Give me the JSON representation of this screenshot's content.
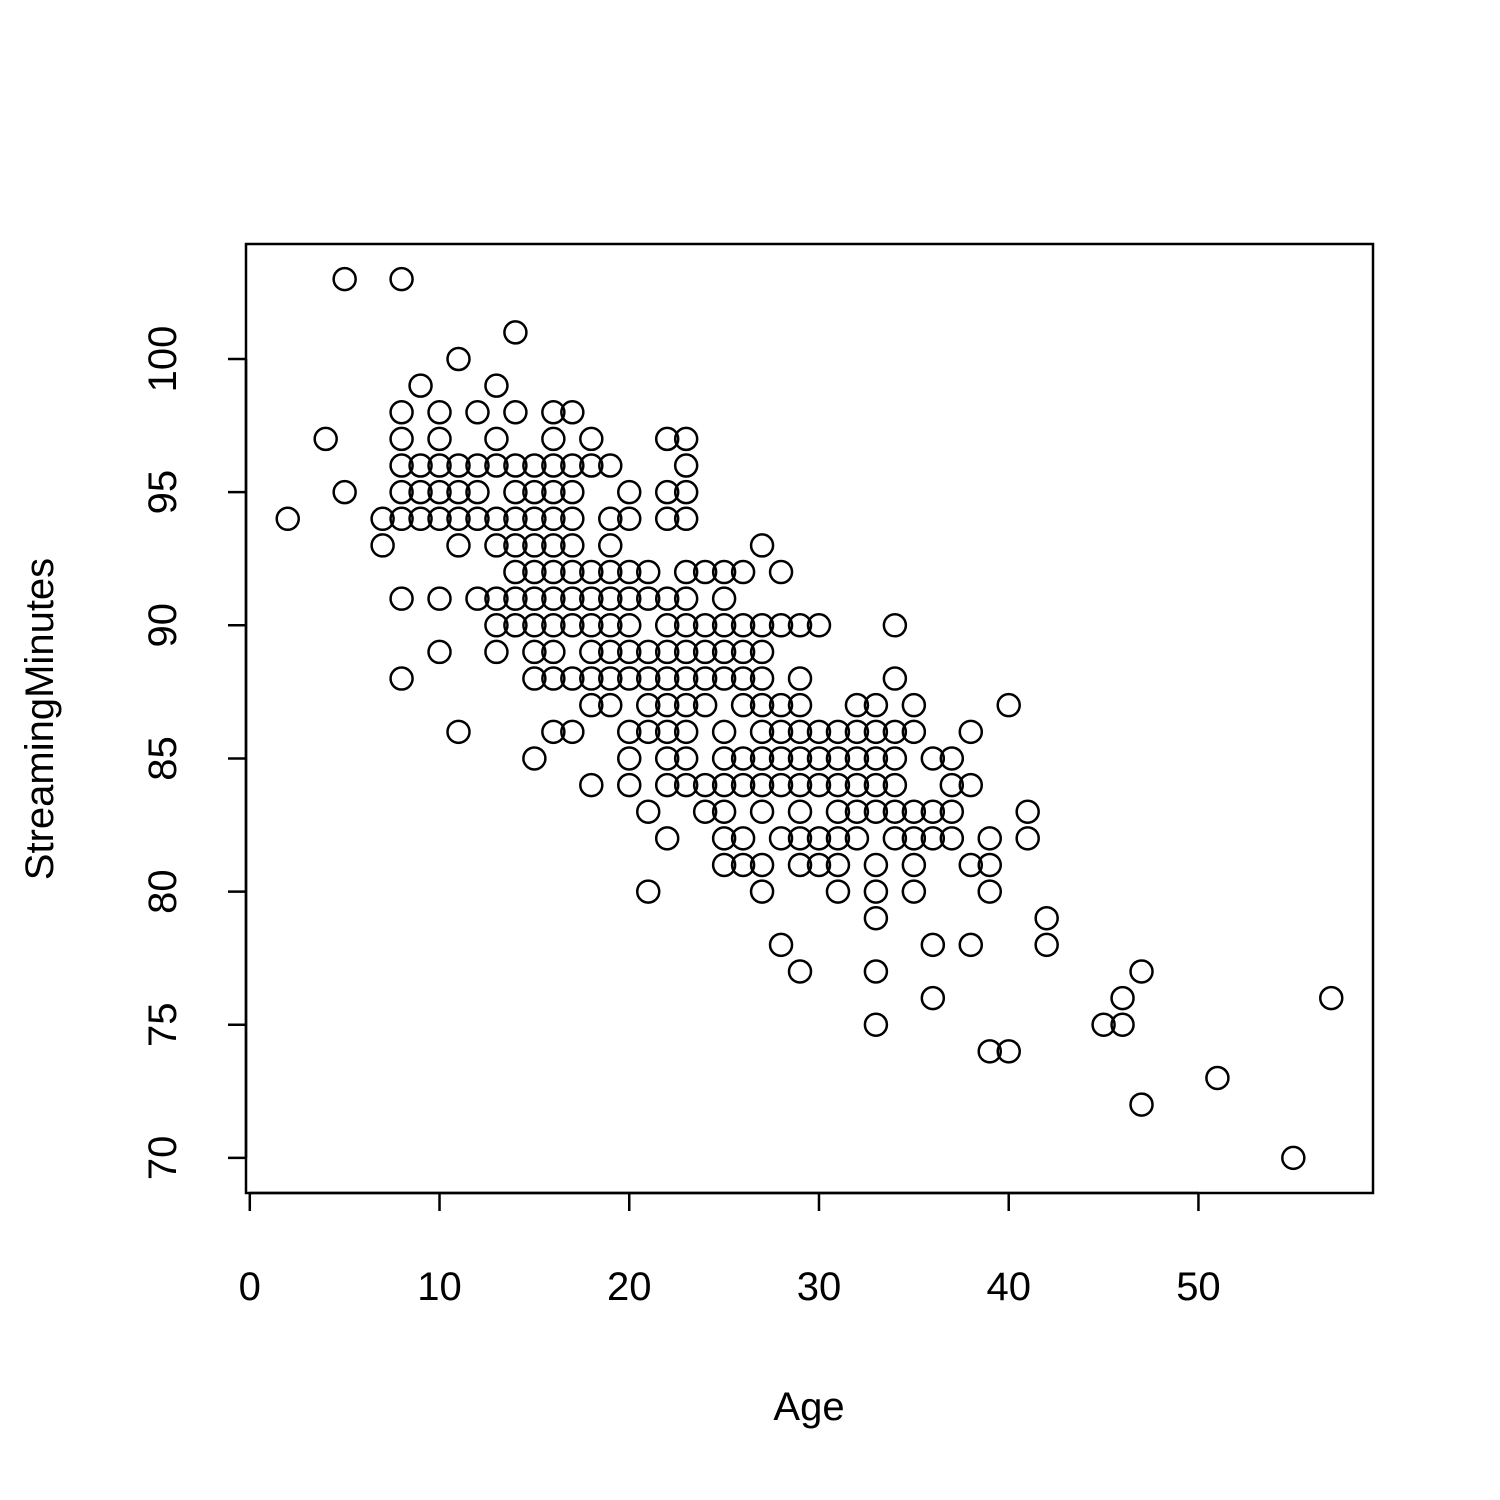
{
  "chart_data": {
    "type": "scatter",
    "x_label": "Age",
    "y_label": "StreamingMinutes",
    "x": [
      2,
      4,
      5,
      5,
      7,
      7,
      8,
      8,
      8,
      8,
      8,
      8,
      8,
      8,
      9,
      9,
      9,
      9,
      10,
      10,
      10,
      10,
      10,
      10,
      10,
      11,
      11,
      11,
      11,
      11,
      11,
      12,
      12,
      12,
      12,
      12,
      13,
      13,
      13,
      13,
      13,
      13,
      13,
      13,
      14,
      14,
      14,
      14,
      14,
      14,
      14,
      14,
      14,
      15,
      15,
      15,
      15,
      15,
      15,
      15,
      15,
      15,
      15,
      16,
      16,
      16,
      16,
      16,
      16,
      16,
      16,
      16,
      16,
      16,
      16,
      17,
      17,
      17,
      17,
      17,
      17,
      17,
      17,
      17,
      17,
      18,
      18,
      18,
      18,
      18,
      18,
      18,
      18,
      18,
      19,
      19,
      19,
      19,
      19,
      19,
      19,
      19,
      19,
      20,
      20,
      20,
      20,
      20,
      20,
      20,
      20,
      20,
      20,
      21,
      21,
      21,
      21,
      21,
      21,
      21,
      21,
      22,
      22,
      22,
      22,
      22,
      22,
      22,
      22,
      22,
      22,
      22,
      22,
      23,
      23,
      23,
      23,
      23,
      23,
      23,
      23,
      23,
      23,
      23,
      23,
      23,
      24,
      24,
      24,
      24,
      24,
      24,
      24,
      25,
      25,
      25,
      25,
      25,
      25,
      25,
      25,
      25,
      25,
      25,
      26,
      26,
      26,
      26,
      26,
      26,
      26,
      26,
      26,
      27,
      27,
      27,
      27,
      27,
      27,
      27,
      27,
      27,
      27,
      27,
      28,
      28,
      28,
      28,
      28,
      28,
      28,
      28,
      29,
      29,
      29,
      29,
      29,
      29,
      29,
      29,
      29,
      29,
      30,
      30,
      30,
      30,
      30,
      30,
      31,
      31,
      31,
      31,
      31,
      31,
      31,
      32,
      32,
      32,
      32,
      32,
      32,
      33,
      33,
      33,
      33,
      33,
      33,
      33,
      33,
      33,
      33,
      34,
      34,
      34,
      34,
      34,
      34,
      34,
      35,
      35,
      35,
      35,
      35,
      35,
      36,
      36,
      36,
      36,
      36,
      37,
      37,
      37,
      37,
      38,
      38,
      38,
      38,
      39,
      39,
      39,
      39,
      40,
      40,
      41,
      41,
      42,
      42,
      45,
      46,
      46,
      47,
      47,
      51,
      55,
      57
    ],
    "values": [
      94,
      97,
      103,
      95,
      94,
      93,
      103,
      98,
      97,
      96,
      95,
      94,
      91,
      88,
      99,
      96,
      95,
      94,
      98,
      97,
      96,
      95,
      94,
      91,
      89,
      100,
      96,
      95,
      94,
      93,
      86,
      98,
      96,
      95,
      94,
      91,
      99,
      97,
      96,
      94,
      93,
      91,
      90,
      89,
      101,
      98,
      96,
      95,
      94,
      93,
      92,
      91,
      90,
      96,
      95,
      94,
      93,
      92,
      91,
      90,
      89,
      88,
      85,
      98,
      97,
      96,
      95,
      94,
      93,
      92,
      91,
      90,
      89,
      88,
      86,
      98,
      96,
      95,
      94,
      93,
      92,
      91,
      90,
      88,
      86,
      97,
      96,
      92,
      91,
      90,
      89,
      88,
      87,
      84,
      96,
      94,
      93,
      92,
      91,
      90,
      89,
      88,
      87,
      95,
      94,
      92,
      91,
      90,
      89,
      88,
      86,
      85,
      84,
      92,
      91,
      89,
      88,
      87,
      86,
      83,
      80,
      97,
      95,
      94,
      91,
      90,
      89,
      88,
      87,
      86,
      85,
      84,
      82,
      97,
      96,
      95,
      94,
      92,
      91,
      90,
      89,
      88,
      87,
      86,
      85,
      84,
      92,
      90,
      89,
      88,
      87,
      84,
      83,
      92,
      91,
      90,
      89,
      88,
      86,
      85,
      84,
      83,
      82,
      81,
      92,
      90,
      89,
      88,
      87,
      85,
      84,
      82,
      81,
      93,
      90,
      89,
      88,
      87,
      86,
      85,
      84,
      83,
      81,
      80,
      92,
      90,
      87,
      86,
      85,
      84,
      82,
      78,
      90,
      88,
      87,
      86,
      85,
      84,
      83,
      82,
      81,
      77,
      90,
      86,
      85,
      84,
      82,
      81,
      86,
      85,
      84,
      83,
      82,
      81,
      80,
      87,
      86,
      85,
      84,
      83,
      82,
      87,
      86,
      85,
      84,
      83,
      81,
      80,
      79,
      77,
      75,
      90,
      88,
      86,
      85,
      84,
      83,
      82,
      87,
      86,
      83,
      82,
      81,
      80,
      85,
      83,
      82,
      78,
      76,
      85,
      84,
      83,
      82,
      86,
      84,
      81,
      78,
      82,
      81,
      80,
      74,
      87,
      74,
      83,
      82,
      79,
      78,
      75,
      76,
      75,
      77,
      72,
      73,
      70,
      76
    ],
    "color": "#000000",
    "xlim": [
      -0.2,
      59.2
    ],
    "ylim": [
      68.68,
      104.32
    ],
    "xticks": [
      0,
      10,
      20,
      30,
      40,
      50
    ],
    "yticks": [
      70,
      75,
      80,
      85,
      90,
      95,
      100
    ]
  }
}
